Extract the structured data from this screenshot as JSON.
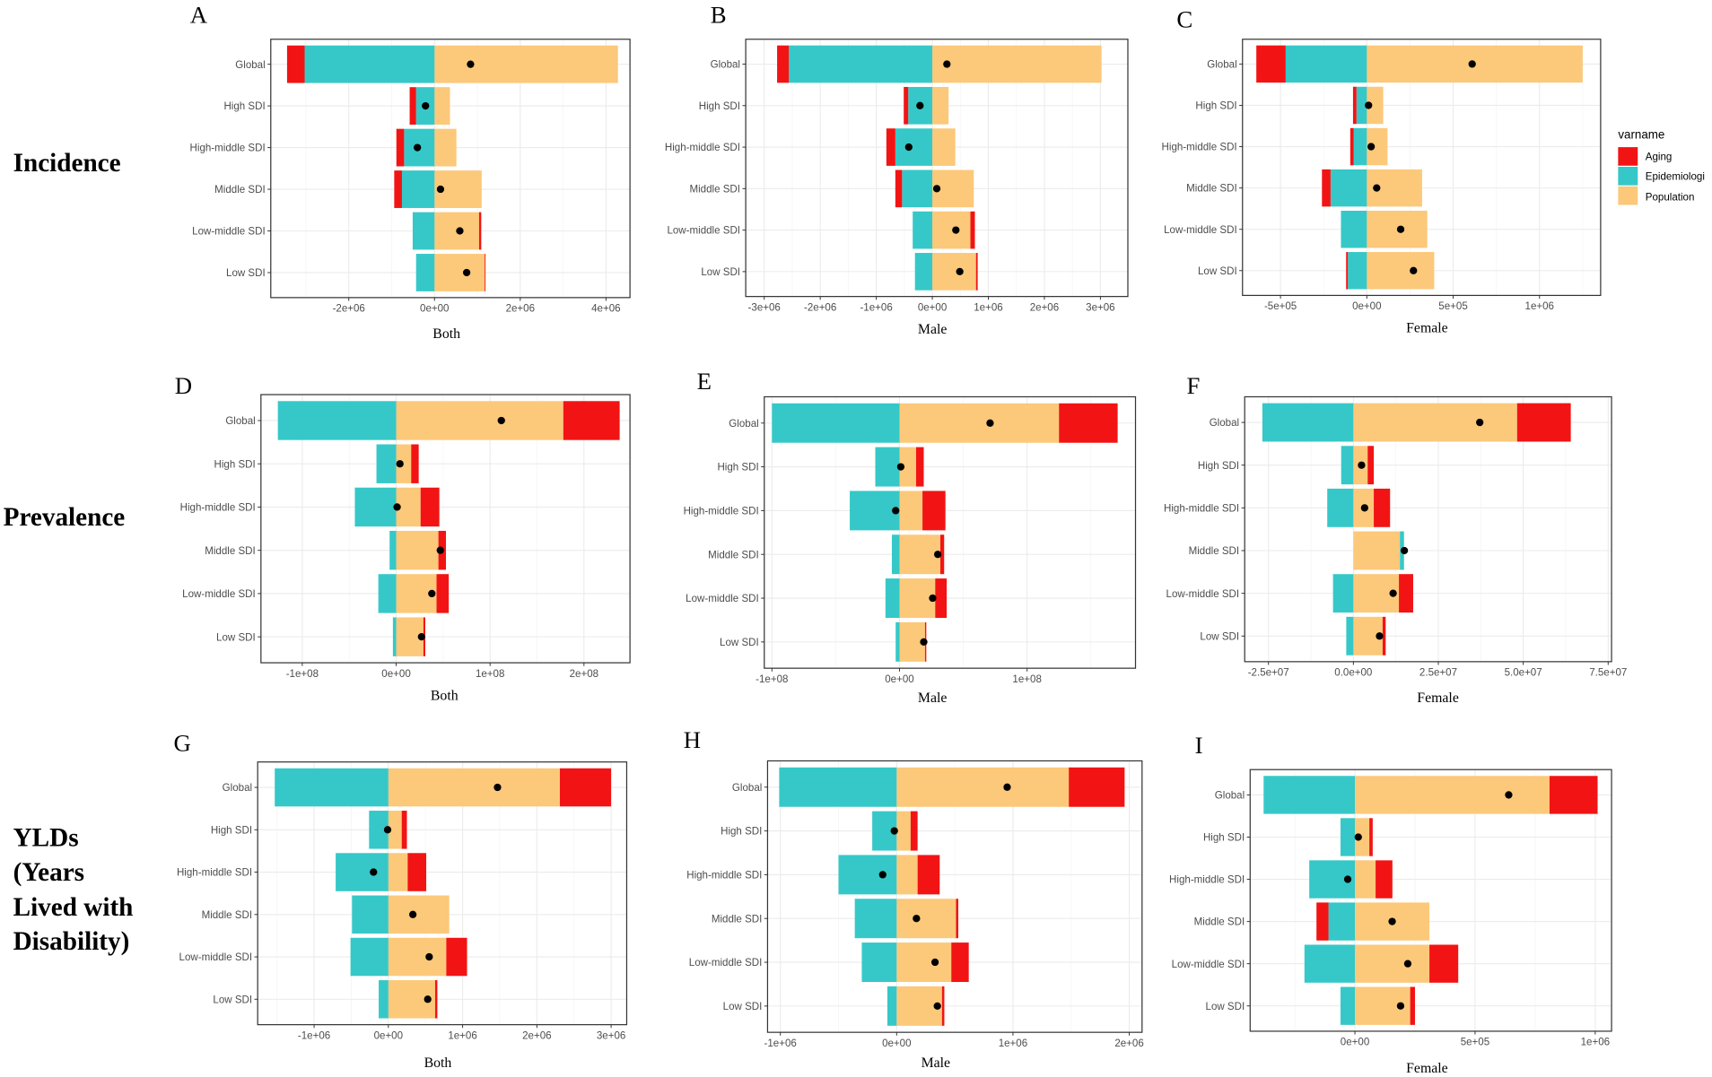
{
  "figure": {
    "row_labels": {
      "incidence": "Incidence",
      "prevalence": "Prevalence",
      "ylds": [
        "YLDs",
        "(Years",
        "Lived with",
        "Disability)"
      ]
    },
    "legend": {
      "title": "varname",
      "items": [
        {
          "label": "Aging",
          "color": "#F21414"
        },
        {
          "label": "Epidemiologi",
          "color": "#36C8C8"
        },
        {
          "label": "Population",
          "color": "#FCC87A"
        }
      ]
    },
    "dot_color": "#000000",
    "border_color": "#333333",
    "grid_color": "#EBEBEB"
  },
  "chart_data": [
    {
      "panel": "A",
      "type": "bar",
      "orientation": "horizontal",
      "stacked": true,
      "xlabel": "Both",
      "categories": [
        "Global",
        "High SDI",
        "High-middle SDI",
        "Middle SDI",
        "Low-middle SDI",
        "Low SDI"
      ],
      "series": [
        {
          "name": "Aging",
          "values": [
            -410000.0,
            -150000.0,
            -180000.0,
            -180000.0,
            50000.0,
            20000.0
          ]
        },
        {
          "name": "Epidemiologi",
          "values": [
            -3030000.0,
            -430000.0,
            -710000.0,
            -760000.0,
            -510000.0,
            -430000.0
          ]
        },
        {
          "name": "Population",
          "values": [
            4280000.0,
            360000.0,
            510000.0,
            1100000.0,
            1040000.0,
            1170000.0
          ]
        }
      ],
      "total": [
        840000.0,
        -210000.0,
        -400000.0,
        140000.0,
        590000.0,
        750000.0
      ],
      "xlim": [
        -3820000.0,
        4560000.0
      ],
      "xticks": [
        -2000000.0,
        0,
        2000000.0,
        4000000.0
      ],
      "xtick_labels": [
        "-2e+06",
        "0e+00",
        "2e+06",
        "4e+06"
      ]
    },
    {
      "panel": "B",
      "type": "bar",
      "orientation": "horizontal",
      "stacked": true,
      "xlabel": "Male",
      "categories": [
        "Global",
        "High SDI",
        "High-middle SDI",
        "Middle SDI",
        "Low-middle SDI",
        "Low SDI"
      ],
      "series": [
        {
          "name": "Aging",
          "values": [
            -210000.0,
            -80000.0,
            -160000.0,
            -120000.0,
            80000.0,
            30000.0
          ]
        },
        {
          "name": "Epidemiologi",
          "values": [
            -2560000.0,
            -430000.0,
            -660000.0,
            -540000.0,
            -350000.0,
            -310000.0
          ]
        },
        {
          "name": "Population",
          "values": [
            3020000.0,
            290000.0,
            410000.0,
            740000.0,
            680000.0,
            780000.0
          ]
        }
      ],
      "total": [
        260000.0,
        -220000.0,
        -420000.0,
        80000.0,
        420000.0,
        490000.0
      ],
      "xlim": [
        -3330000.0,
        3490000.0
      ],
      "xticks": [
        -3000000.0,
        -2000000.0,
        -1000000.0,
        0,
        1000000.0,
        2000000.0,
        3000000.0
      ],
      "xtick_labels": [
        "-3e+06",
        "-2e+06",
        "-1e+06",
        "0e+00",
        "1e+06",
        "2e+06",
        "3e+06"
      ]
    },
    {
      "panel": "C",
      "type": "bar",
      "orientation": "horizontal",
      "stacked": true,
      "xlabel": "Female",
      "categories": [
        "Global",
        "High SDI",
        "High-middle SDI",
        "Middle SDI",
        "Low-middle SDI",
        "Low SDI"
      ],
      "series": [
        {
          "name": "Aging",
          "values": [
            -170000.0,
            -20000.0,
            -20000.0,
            -50000.0,
            0,
            -10000.0
          ]
        },
        {
          "name": "Epidemiologi",
          "values": [
            -470000.0,
            -60000.0,
            -76000.0,
            -210000.0,
            -150000.0,
            -110000.0
          ]
        },
        {
          "name": "Population",
          "values": [
            1250000.0,
            95000.0,
            120000.0,
            320000.0,
            350000.0,
            390000.0
          ]
        }
      ],
      "total": [
        610000.0,
        10000.0,
        25000.0,
        57000.0,
        196000.0,
        270000.0
      ],
      "xlim": [
        -720000.0,
        1354000.0
      ],
      "xticks": [
        -500000.0,
        0,
        500000.0,
        1000000.0
      ],
      "xtick_labels": [
        "-5e+05",
        "0e+00",
        "5e+05",
        "1e+06"
      ]
    },
    {
      "panel": "D",
      "type": "bar",
      "orientation": "horizontal",
      "stacked": true,
      "xlabel": "Both",
      "categories": [
        "Global",
        "High SDI",
        "High-middle SDI",
        "Middle SDI",
        "Low-middle SDI",
        "Low SDI"
      ],
      "series": [
        {
          "name": "Aging",
          "values": [
            60000000.0,
            8000000.0,
            20000000.0,
            8000000.0,
            13000000.0,
            2000000.0
          ]
        },
        {
          "name": "Epidemiologi",
          "values": [
            -126000000.0,
            -21000000.0,
            -44000000.0,
            -7000000.0,
            -19000000.0,
            -3500000.0
          ]
        },
        {
          "name": "Population",
          "values": [
            178000000.0,
            16000000.0,
            26000000.0,
            45000000.0,
            43000000.0,
            29000000.0
          ]
        }
      ],
      "total": [
        112000000.0,
        4000000.0,
        1000000.0,
        47000000.0,
        38000000.0,
        27000000.0
      ],
      "xlim": [
        -144000000.0,
        249000000.0
      ],
      "xticks": [
        -100000000.0,
        0,
        100000000.0,
        200000000.0
      ],
      "xtick_labels": [
        "-1e+08",
        "0e+00",
        "1e+08",
        "2e+08"
      ]
    },
    {
      "panel": "E",
      "type": "bar",
      "orientation": "horizontal",
      "stacked": true,
      "xlabel": "Male",
      "categories": [
        "Global",
        "High SDI",
        "High-middle SDI",
        "Middle SDI",
        "Low-middle SDI",
        "Low SDI"
      ],
      "series": [
        {
          "name": "Aging",
          "values": [
            46000000.0,
            6000000.0,
            18000000.0,
            3000000.0,
            9000000.0,
            1000000.0
          ]
        },
        {
          "name": "Epidemiologi",
          "values": [
            -100000000.0,
            -19000000.0,
            -39000000.0,
            -6000000.0,
            -11000000.0,
            -3000000.0
          ]
        },
        {
          "name": "Population",
          "values": [
            125000000.0,
            13000000.0,
            18000000.0,
            32000000.0,
            28000000.0,
            20000000.0
          ]
        }
      ],
      "total": [
        71000000.0,
        1000000.0,
        -3000000.0,
        30000000.0,
        26000000.0,
        19000000.0
      ],
      "xlim": [
        -106000000.0,
        185000000.0
      ],
      "xticks": [
        -100000000.0,
        0,
        100000000.0
      ],
      "xtick_labels": [
        "-1e+08",
        "0e+00",
        "1e+08"
      ]
    },
    {
      "panel": "F",
      "type": "bar",
      "orientation": "horizontal",
      "stacked": true,
      "xlabel": "Female",
      "categories": [
        "Global",
        "High SDI",
        "High-middle SDI",
        "Middle SDI",
        "Low-middle SDI",
        "Low SDI"
      ],
      "series": [
        {
          "name": "Aging",
          "values": [
            15800000.0,
            1800000.0,
            4800000.0,
            0,
            4200000.0,
            900000.0
          ]
        },
        {
          "name": "Epidemiologi",
          "values": [
            -26800000.0,
            -3600000.0,
            -7700000.0,
            1200000.0,
            -6000000.0,
            -2100000.0
          ]
        },
        {
          "name": "Population",
          "values": [
            48200000.0,
            4200000.0,
            6000000.0,
            13700000.0,
            13400000.0,
            8600000.0
          ]
        }
      ],
      "total": [
        37200000.0,
        2400000.0,
        3300000.0,
        15000000.0,
        11700000.0,
        7700000.0
      ],
      "xlim": [
        -32000000.0,
        76000000.0
      ],
      "xticks": [
        -25000000.0,
        0,
        25000000.0,
        50000000.0,
        75000000.0
      ],
      "xtick_labels": [
        "-2.5e+07",
        "0.0e+00",
        "2.5e+07",
        "5.0e+07",
        "7.5e+07"
      ]
    },
    {
      "panel": "G",
      "type": "bar",
      "orientation": "horizontal",
      "stacked": true,
      "xlabel": "Both",
      "categories": [
        "Global",
        "High SDI",
        "High-middle SDI",
        "Middle SDI",
        "Low-middle SDI",
        "Low SDI"
      ],
      "series": [
        {
          "name": "Aging",
          "values": [
            690000.0,
            70000.0,
            250000.0,
            0,
            280000.0,
            30000.0
          ]
        },
        {
          "name": "Epidemiologi",
          "values": [
            -1530000.0,
            -260000.0,
            -710000.0,
            -490000.0,
            -510000.0,
            -130000.0
          ]
        },
        {
          "name": "Population",
          "values": [
            2310000.0,
            180000.0,
            260000.0,
            820000.0,
            780000.0,
            630000.0
          ]
        }
      ],
      "total": [
        1470000.0,
        -10000.0,
        -200000.0,
        330000.0,
        550000.0,
        530000.0
      ],
      "xlim": [
        -1760000.0,
        3210000.0
      ],
      "xticks": [
        -1000000.0,
        0,
        1000000.0,
        2000000.0,
        3000000.0
      ],
      "xtick_labels": [
        "-1e+06",
        "0e+00",
        "1e+06",
        "2e+06",
        "3e+06"
      ]
    },
    {
      "panel": "H",
      "type": "bar",
      "orientation": "horizontal",
      "stacked": true,
      "xlabel": "Male",
      "categories": [
        "Global",
        "High SDI",
        "High-middle SDI",
        "Middle SDI",
        "Low-middle SDI",
        "Low SDI"
      ],
      "series": [
        {
          "name": "Aging",
          "values": [
            480000.0,
            60000.0,
            190000.0,
            20000.0,
            150000.0,
            20000.0
          ]
        },
        {
          "name": "Epidemiologi",
          "values": [
            -1010000.0,
            -210000.0,
            -500000.0,
            -360000.0,
            -300000.0,
            -80000.0
          ]
        },
        {
          "name": "Population",
          "values": [
            1480000.0,
            120000.0,
            180000.0,
            510000.0,
            470000.0,
            390000.0
          ]
        }
      ],
      "total": [
        950000.0,
        -20000.0,
        -120000.0,
        170000.0,
        330000.0,
        350000.0
      ],
      "xlim": [
        -1110000.0,
        2110000.0
      ],
      "xticks": [
        -1000000.0,
        0,
        1000000.0,
        2000000.0
      ],
      "xtick_labels": [
        "-1e+06",
        "0e+00",
        "1e+06",
        "2e+06"
      ]
    },
    {
      "panel": "I",
      "type": "bar",
      "orientation": "horizontal",
      "stacked": true,
      "xlabel": "Female",
      "categories": [
        "Global",
        "High SDI",
        "High-middle SDI",
        "Middle SDI",
        "Low-middle SDI",
        "Low SDI"
      ],
      "series": [
        {
          "name": "Aging",
          "values": [
            200000.0,
            14000.0,
            70000.0,
            -50000.0,
            120000.0,
            20000.0
          ]
        },
        {
          "name": "Epidemiologi",
          "values": [
            -380000.0,
            -60000.0,
            -190000.0,
            -110000.0,
            -210000.0,
            -60000.0
          ]
        },
        {
          "name": "Population",
          "values": [
            810000.0,
            60000.0,
            86000.0,
            310000.0,
            310000.0,
            230000.0
          ]
        }
      ],
      "total": [
        640000.0,
        14000.0,
        -30000.0,
        155000.0,
        220000.0,
        190000.0
      ],
      "xlim": [
        -436000.0,
        1068000.0
      ],
      "xticks": [
        0,
        500000.0,
        1000000.0
      ],
      "xtick_labels": [
        "0e+00",
        "5e+05",
        "1e+06"
      ]
    }
  ]
}
